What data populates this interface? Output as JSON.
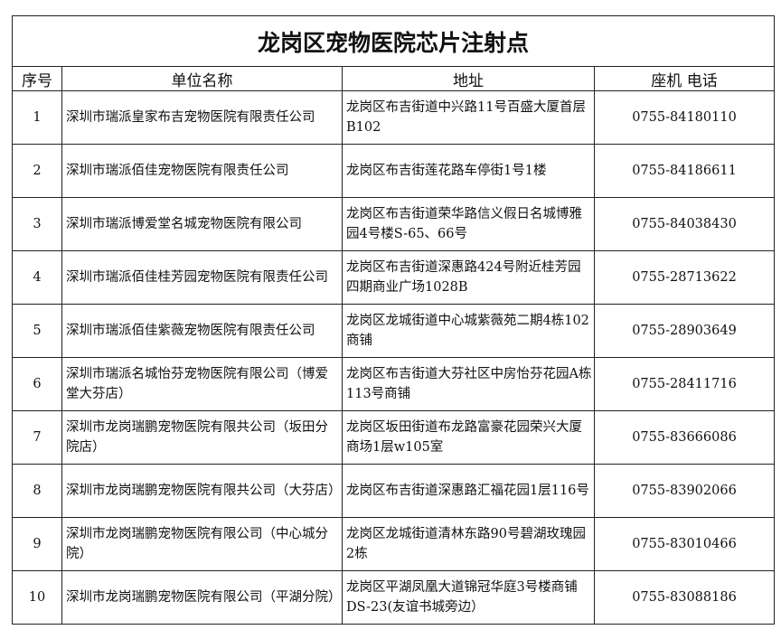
{
  "title": "龙岗区宠物医院芯片注射点",
  "headers": [
    "序号",
    "单位名称",
    "地址",
    "座机  电话"
  ],
  "rows": [
    {
      "no": "1",
      "name": "深圳市瑞派皇家布吉宠物医院有限责任公司",
      "address": "龙岗区布吉街道中兴路11号百盛大厦首层B102",
      "phone": "0755-84180110"
    },
    {
      "no": "2",
      "name": "深圳市瑞派佰佳宠物医院有限责任公司",
      "address": "龙岗区布吉街莲花路车停街1号1楼",
      "phone": "0755-84186611"
    },
    {
      "no": "3",
      "name": "深圳市瑞派博爱堂名城宠物医院有限公司",
      "address": "龙岗区布吉街道荣华路信义假日名城博雅园4号楼S-65、66号",
      "phone": "0755-84038430"
    },
    {
      "no": "4",
      "name": "深圳市瑞派佰佳桂芳园宠物医院有限责任公司",
      "address": "龙岗区布吉街道深惠路424号附近桂芳园四期商业广场1028B",
      "phone": "0755-28713622"
    },
    {
      "no": "5",
      "name": "深圳市瑞派佰佳紫薇宠物医院有限责任公司",
      "address": "龙岗区龙城街道中心城紫薇苑二期4栋102商铺",
      "phone": "0755-28903649"
    },
    {
      "no": "6",
      "name": "深圳市瑞派名城怡芬宠物医院有限公司（博爱堂大芬店）",
      "address": "龙岗区布吉街道大芬社区中房怡芬花园A栋113号商铺",
      "phone": "0755-28411716"
    },
    {
      "no": "7",
      "name": "深圳市龙岗瑞鹏宠物医院有限共公司（坂田分院店）",
      "address": "龙岗区坂田街道布龙路富豪花园荣兴大厦商场1层w105室",
      "phone": "0755-83666086"
    },
    {
      "no": "8",
      "name": "深圳市龙岗瑞鹏宠物医院有限共公司（大芬店）",
      "address": "龙岗区布吉街道深惠路汇福花园1层116号",
      "phone": "0755-83902066"
    },
    {
      "no": "9",
      "name": "深圳市龙岗瑞鹏宠物医院有限公司（中心城分院）",
      "address": "龙岗区龙城街道清林东路90号碧湖玫瑰园2栋",
      "phone": "0755-83010466"
    },
    {
      "no": "10",
      "name": "深圳市龙岗瑞鹏宠物医院有限公司（平湖分院）",
      "address": "龙岗区平湖凤凰大道锦冠华庭3号楼商铺DS-23(友谊书城旁边）",
      "phone": "0755-83088186"
    }
  ]
}
